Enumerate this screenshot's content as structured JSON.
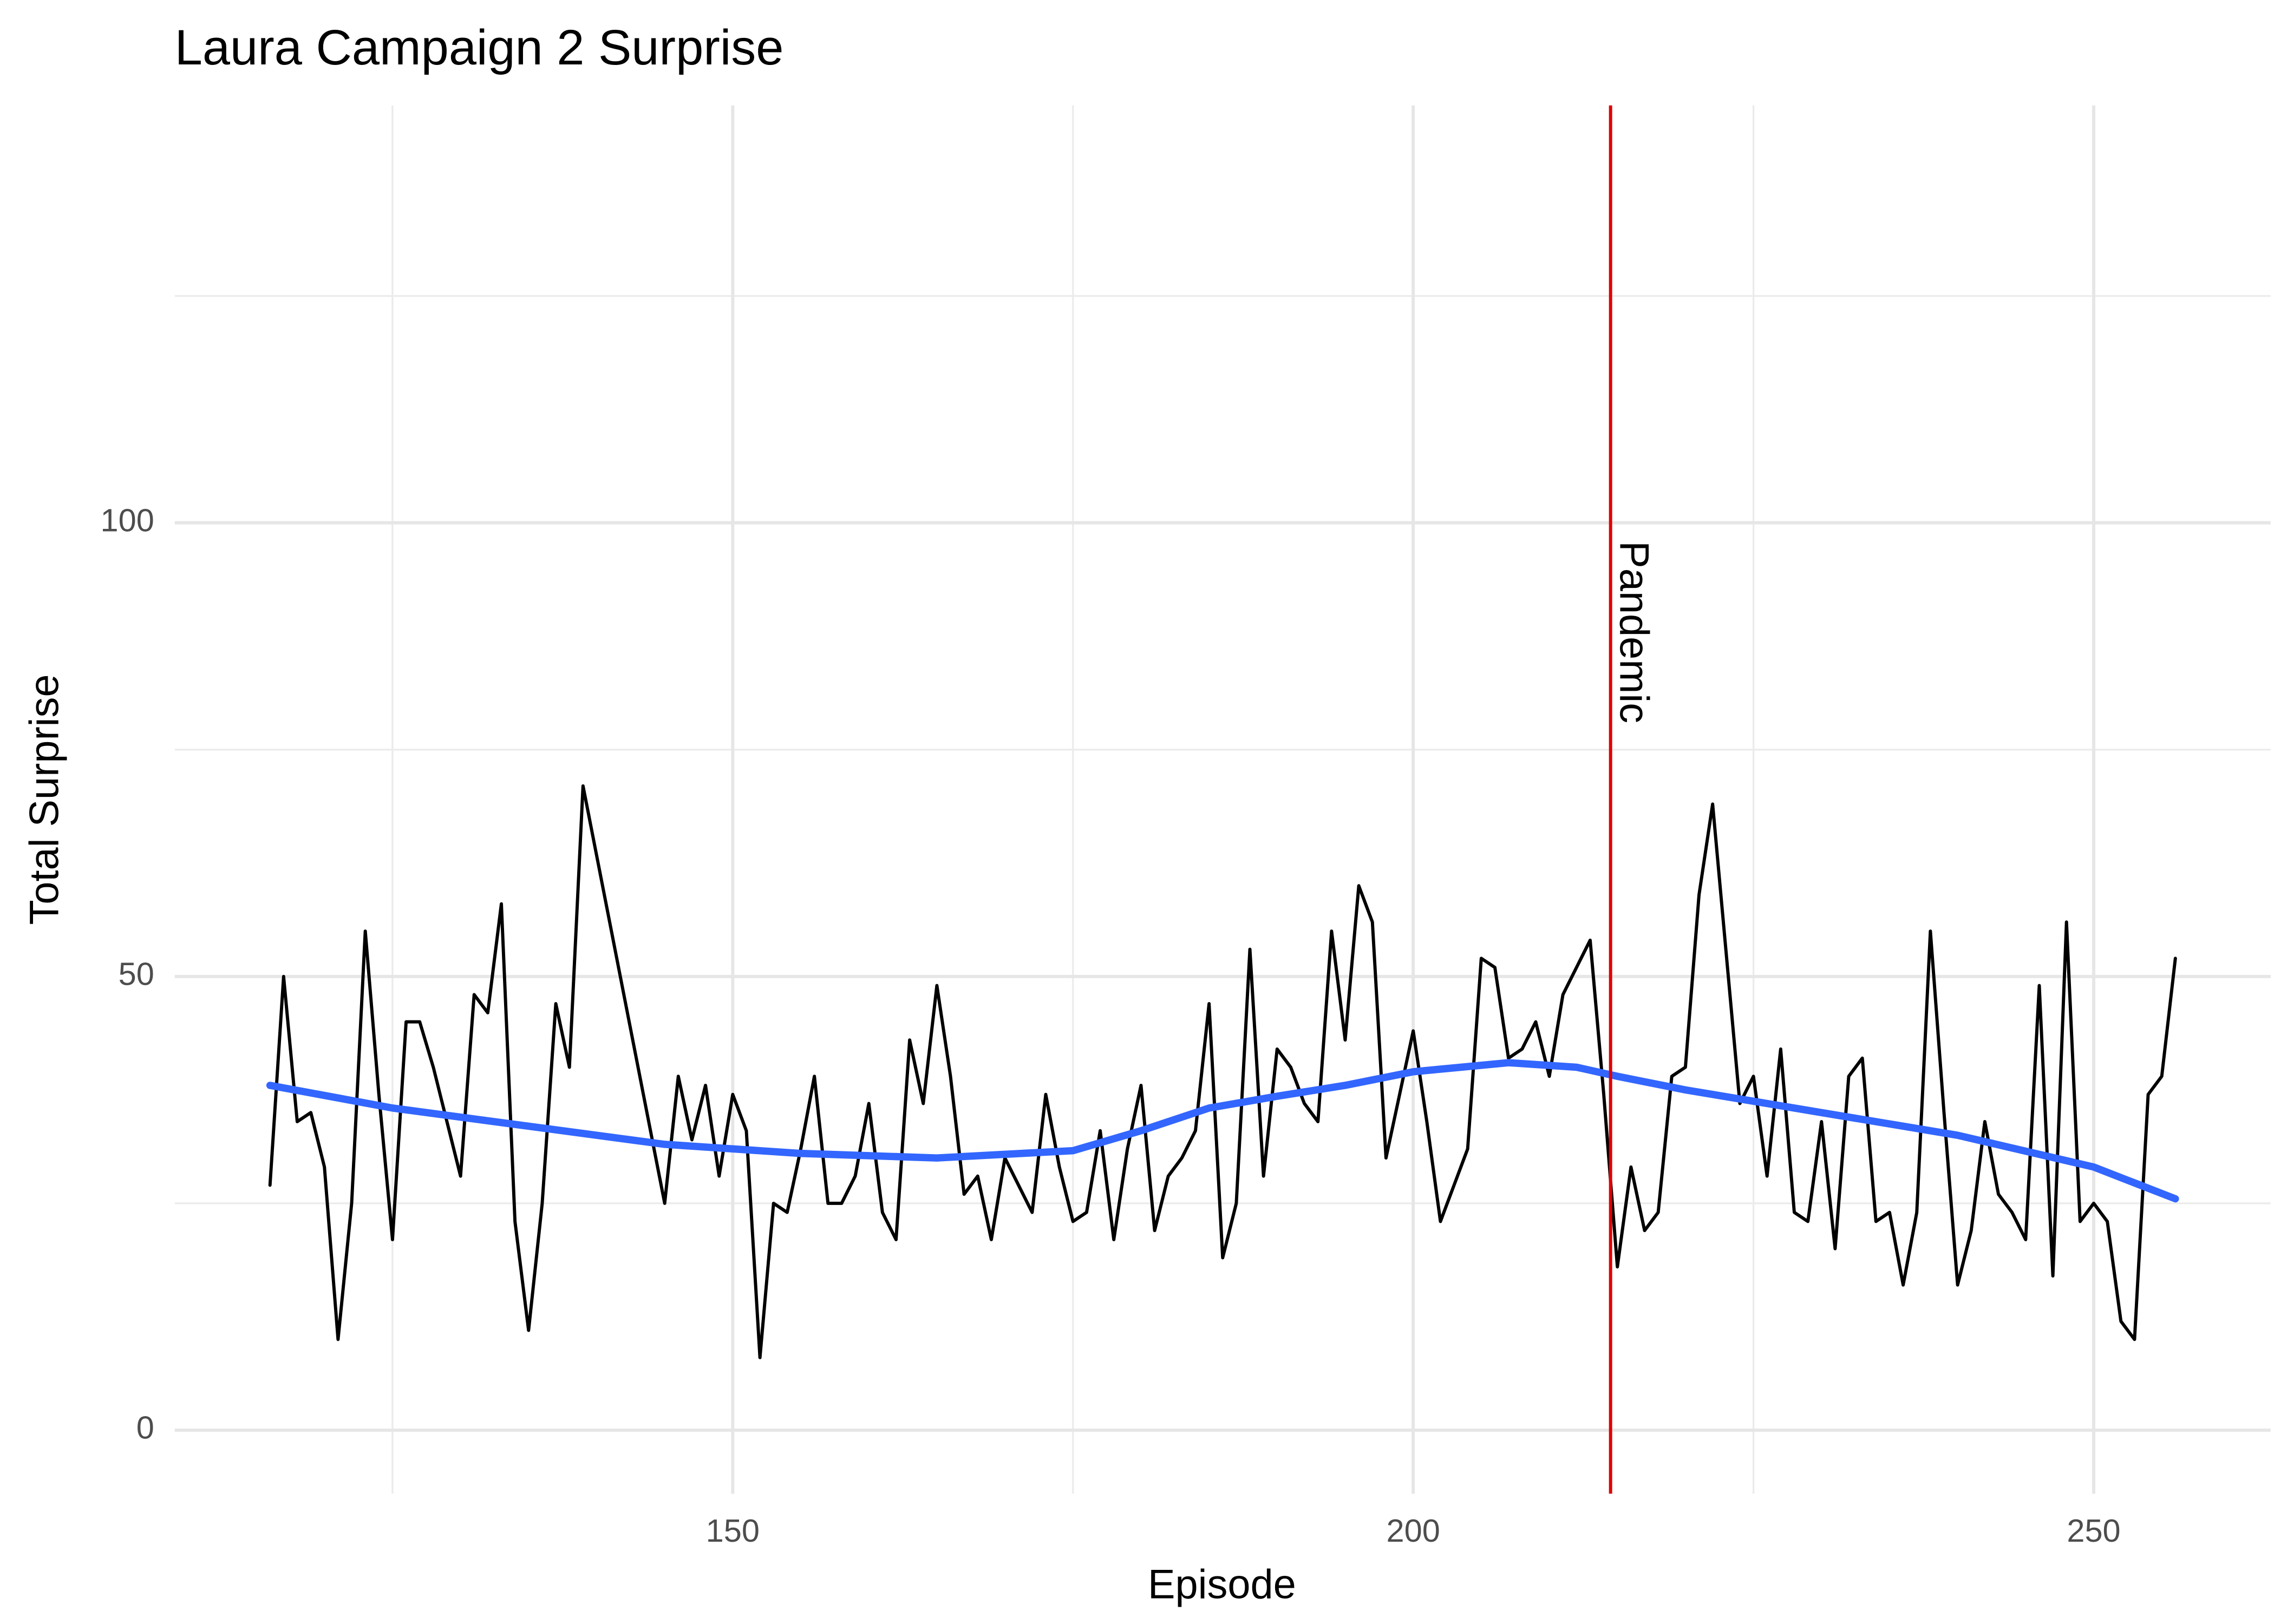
{
  "chart_data": {
    "type": "line",
    "title": "Laura Campaign 2 Surprise",
    "x_label": "Episode",
    "y_label": "Total Surprise",
    "xlim": [
      109,
      263
    ],
    "ylim": [
      -7,
      146
    ],
    "xticks": [
      150,
      200,
      250
    ],
    "yticks": [
      0,
      50,
      100
    ],
    "minor_xticks": [
      125,
      175,
      225
    ],
    "minor_yticks": [
      25,
      75,
      125
    ],
    "grid": true,
    "series": [
      {
        "color": "#000000",
        "line_width": 2.2,
        "x": [
          116,
          117,
          118,
          119,
          120,
          121,
          122,
          123,
          124,
          125,
          126,
          127,
          128,
          129,
          130,
          131,
          132,
          133,
          134,
          135,
          136,
          137,
          138,
          139,
          145,
          146,
          147,
          148,
          149,
          150,
          151,
          152,
          153,
          154,
          155,
          156,
          157,
          158,
          159,
          160,
          161,
          162,
          163,
          164,
          165,
          166,
          167,
          168,
          169,
          170,
          171,
          172,
          173,
          174,
          175,
          176,
          177,
          178,
          179,
          180,
          181,
          182,
          183,
          184,
          185,
          186,
          187,
          188,
          189,
          190,
          191,
          192,
          193,
          194,
          195,
          196,
          197,
          198,
          199,
          200,
          201,
          202,
          203,
          204,
          205,
          206,
          207,
          208,
          209,
          210,
          211,
          213,
          214,
          215,
          216,
          217,
          218,
          219,
          220,
          221,
          222,
          224,
          225,
          226,
          227,
          228,
          229,
          230,
          231,
          232,
          233,
          234,
          235,
          236,
          237,
          238,
          239,
          240,
          241,
          242,
          243,
          244,
          245,
          246,
          247,
          248,
          249,
          250,
          251,
          252,
          253,
          254,
          255,
          256
        ],
        "values": [
          27,
          50,
          34,
          35,
          29,
          10,
          25,
          55,
          37,
          21,
          45,
          45,
          40,
          34,
          28,
          48,
          46,
          58,
          23,
          11,
          25,
          47,
          40,
          71,
          25,
          39,
          32,
          38,
          28,
          37,
          33,
          8,
          25,
          24,
          31,
          39,
          25,
          25,
          28,
          36,
          24,
          21,
          43,
          36,
          49,
          39,
          26,
          28,
          21,
          30,
          27,
          24,
          37,
          29,
          23,
          24,
          33,
          21,
          31,
          38,
          22,
          28,
          30,
          33,
          47,
          19,
          25,
          53,
          28,
          42,
          40,
          36,
          34,
          55,
          43,
          60,
          56,
          30,
          37,
          44,
          34,
          23,
          27,
          31,
          52,
          51,
          41,
          42,
          45,
          39,
          48,
          54,
          37,
          18,
          29,
          22,
          24,
          39,
          40,
          59,
          69,
          36,
          39,
          28,
          42,
          24,
          23,
          34,
          20,
          39,
          41,
          23,
          24,
          16,
          24,
          55,
          35,
          16,
          22,
          34,
          26,
          24,
          21,
          49,
          17,
          56,
          23,
          25,
          23,
          12,
          10,
          37,
          39,
          52
        ]
      },
      {
        "color": "#3366ff",
        "line_width": 5,
        "x": [
          116,
          125,
          135,
          145,
          155,
          165,
          175,
          180,
          185,
          190,
          195,
          200,
          207,
          212,
          215,
          220,
          230,
          240,
          250,
          256
        ],
        "values": [
          38,
          35.5,
          33.5,
          31.5,
          30.5,
          30,
          30.8,
          33,
          35.5,
          36.8,
          38,
          39.5,
          40.5,
          40,
          39,
          37.5,
          35,
          32.5,
          29,
          25.5
        ]
      }
    ],
    "vline": {
      "x": 214.5,
      "color": "#e00000",
      "label": "Pandemic",
      "label_y": 98
    }
  }
}
